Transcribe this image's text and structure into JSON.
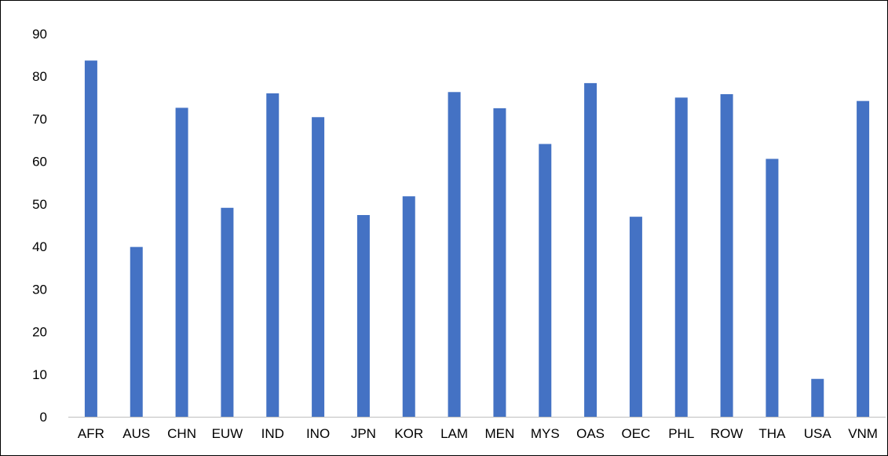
{
  "chart_data": {
    "type": "bar",
    "categories": [
      "AFR",
      "AUS",
      "CHN",
      "EUW",
      "IND",
      "INO",
      "JPN",
      "KOR",
      "LAM",
      "MEN",
      "MYS",
      "OAS",
      "OEC",
      "PHL",
      "ROW",
      "THA",
      "USA",
      "VNM"
    ],
    "values": [
      83.7,
      39.9,
      72.6,
      49.1,
      76.0,
      70.4,
      47.4,
      51.8,
      76.3,
      72.5,
      64.1,
      78.4,
      47.0,
      75.0,
      75.8,
      60.6,
      8.9,
      74.2
    ],
    "yticks": [
      "0",
      "10",
      "20",
      "30",
      "40",
      "50",
      "60",
      "70",
      "80",
      "90"
    ],
    "ylim": [
      0,
      90
    ],
    "bar_color": "#4472C4",
    "axis_color": "#BFBFBF",
    "grid": false,
    "legend": "none"
  }
}
